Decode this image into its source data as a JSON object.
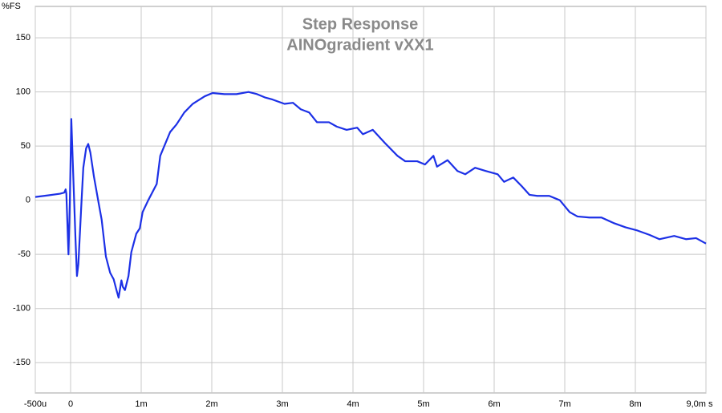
{
  "chart_data": {
    "type": "line",
    "title": "Step Response",
    "subtitle": "AINOgradient vXX1",
    "y_label": "%FS",
    "color": "#1c30e6",
    "grid": true,
    "xlim": [
      -0.5,
      9.0
    ],
    "ylim": [
      -178,
      179
    ],
    "xticks": [
      {
        "value": -0.5,
        "label": "-500u"
      },
      0,
      {
        "value": 1,
        "label": "1m"
      },
      {
        "value": 2,
        "label": "2m"
      },
      {
        "value": 3,
        "label": "3m"
      },
      {
        "value": 4,
        "label": "4m"
      },
      {
        "value": 5,
        "label": "5m"
      },
      {
        "value": 6,
        "label": "6m"
      },
      {
        "value": 7,
        "label": "7m"
      },
      {
        "value": 8,
        "label": "8m"
      },
      {
        "value": 9,
        "label": "9,0m s"
      }
    ],
    "yticks": [
      150,
      100,
      50,
      0,
      -50,
      -100,
      -150
    ],
    "x": [
      -0.5,
      -0.32,
      -0.15,
      -0.09,
      -0.07,
      -0.06,
      -0.03,
      -0.01,
      0.01,
      0.03,
      0.07,
      0.09,
      0.11,
      0.15,
      0.18,
      0.22,
      0.25,
      0.28,
      0.33,
      0.39,
      0.44,
      0.5,
      0.56,
      0.61,
      0.65,
      0.68,
      0.72,
      0.74,
      0.77,
      0.82,
      0.86,
      0.93,
      0.98,
      1.02,
      1.1,
      1.22,
      1.27,
      1.34,
      1.41,
      1.5,
      1.61,
      1.73,
      1.9,
      2.01,
      2.18,
      2.35,
      2.52,
      2.64,
      2.75,
      2.86,
      3.03,
      3.15,
      3.26,
      3.38,
      3.49,
      3.66,
      3.77,
      3.91,
      4.06,
      4.14,
      4.28,
      4.45,
      4.63,
      4.74,
      4.91,
      5.02,
      5.14,
      5.19,
      5.34,
      5.48,
      5.59,
      5.73,
      5.88,
      6.05,
      6.14,
      6.27,
      6.39,
      6.5,
      6.61,
      6.78,
      6.93,
      7.07,
      7.18,
      7.35,
      7.52,
      7.69,
      7.86,
      8.03,
      8.2,
      8.34,
      8.55,
      8.72,
      8.86,
      9.0
    ],
    "values": [
      3,
      4.5,
      6,
      7,
      10,
      6,
      -50,
      0,
      75,
      37,
      -37,
      -70,
      -59,
      -7,
      30,
      48,
      52,
      44,
      22,
      0,
      -18,
      -52,
      -67,
      -73,
      -83,
      -90,
      -74,
      -80,
      -83,
      -70,
      -48,
      -31,
      -26,
      -11,
      0,
      15,
      41,
      52,
      63,
      70,
      81,
      89,
      96,
      99,
      98,
      98,
      100,
      98,
      95,
      93,
      89,
      90,
      84,
      81,
      72,
      72,
      68,
      65,
      67,
      61,
      65,
      53,
      41,
      36,
      36,
      33,
      41,
      31,
      37,
      27,
      24,
      30,
      27,
      24,
      17,
      21,
      13,
      5,
      4,
      4,
      0,
      -11,
      -15,
      -16,
      -16,
      -21,
      -25,
      -28,
      -32,
      -36,
      -33,
      -36,
      -35,
      -40
    ]
  }
}
